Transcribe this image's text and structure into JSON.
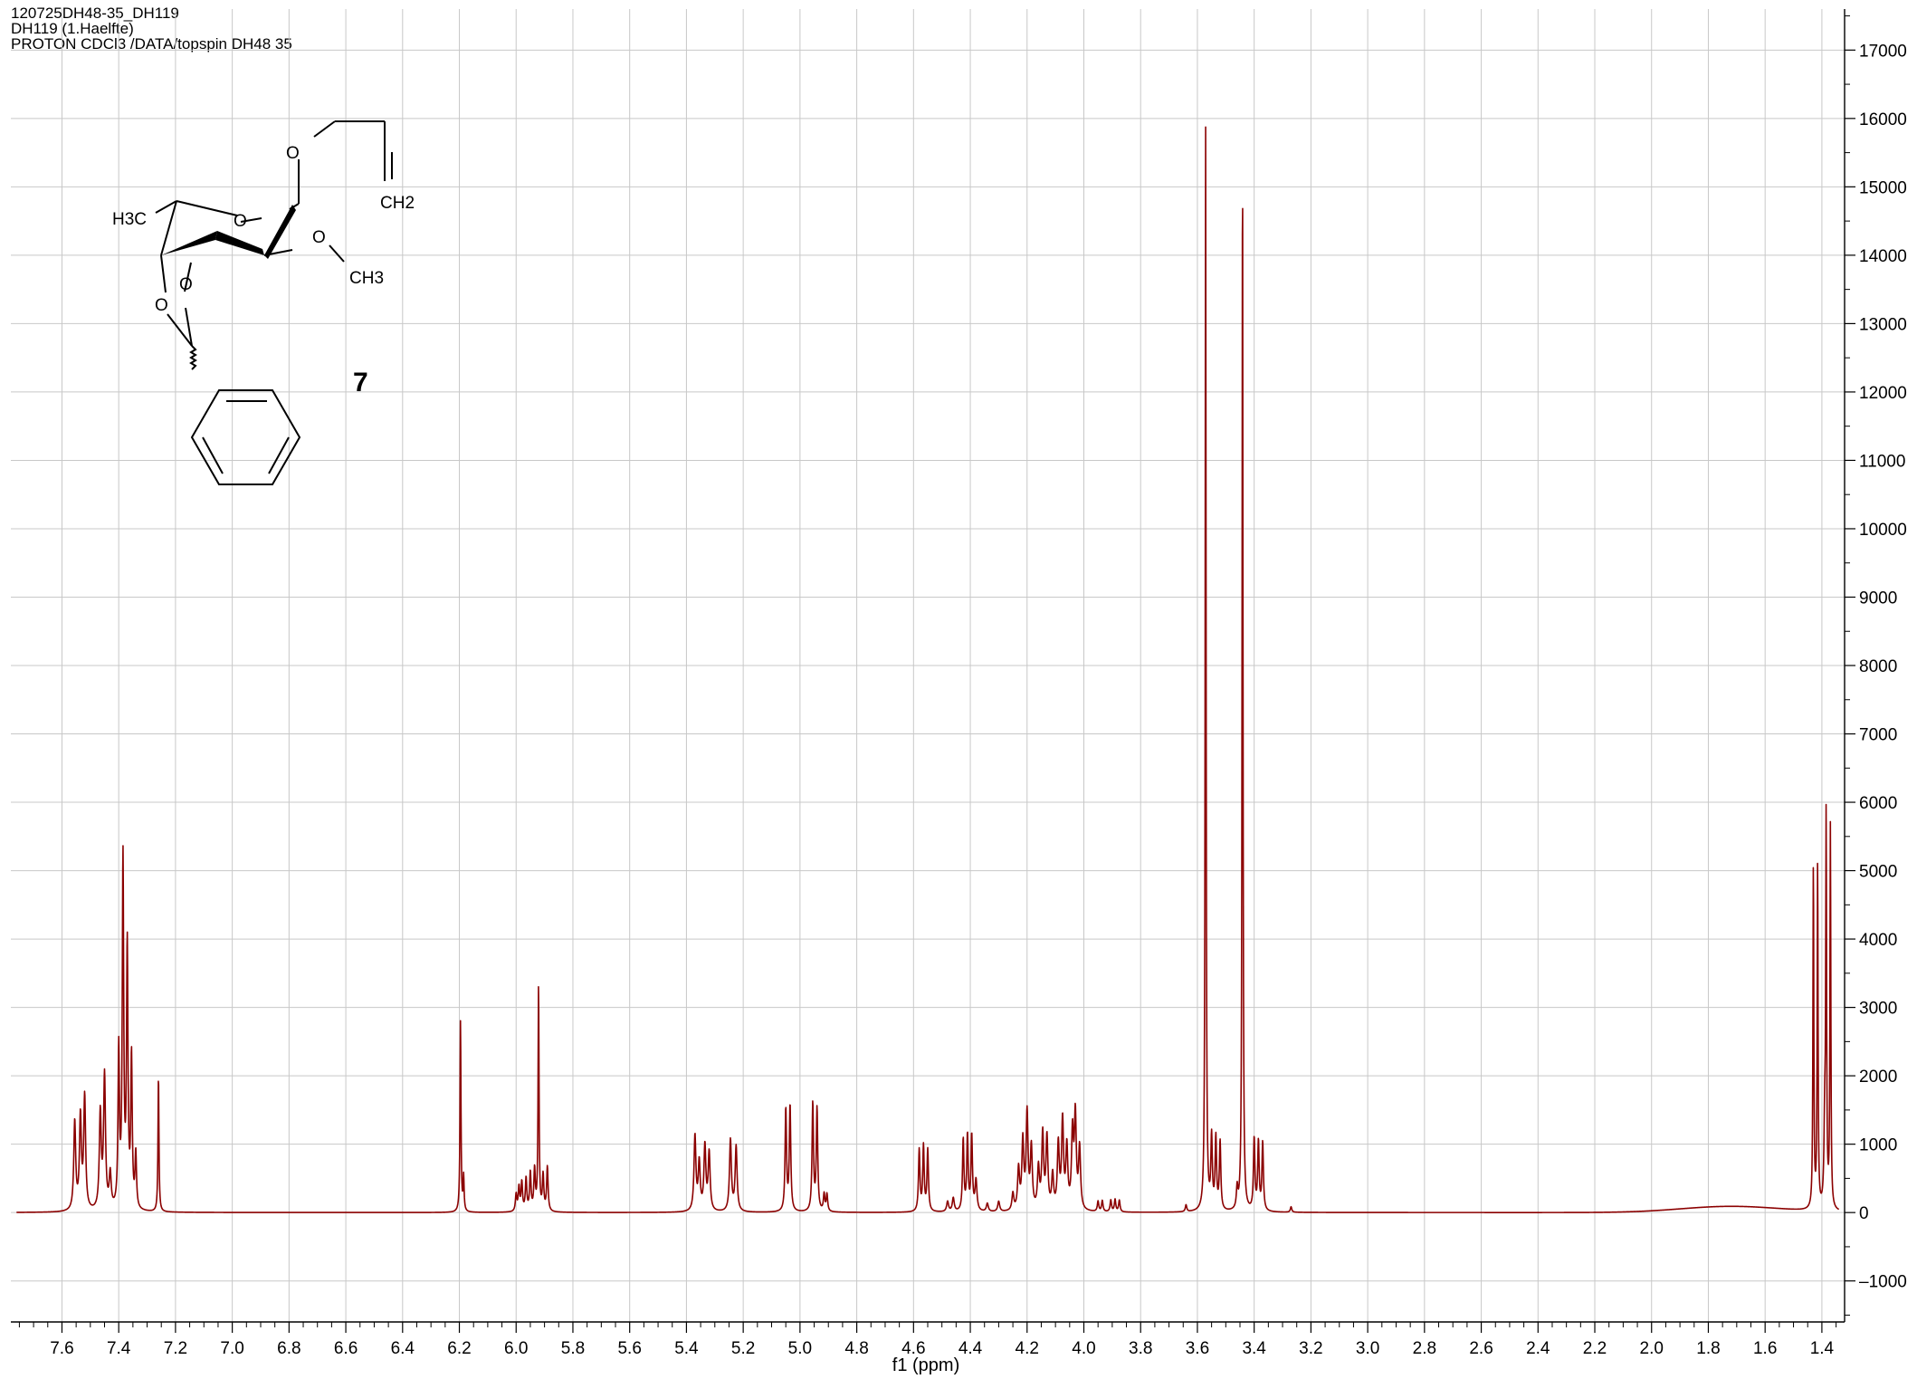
{
  "header": {
    "line1": "120725DH48-35_DH119",
    "line2": "DH119 (1.Haelfte)",
    "line3": "PROTON CDCl3 /DATA/topspin DH48 35"
  },
  "structure": {
    "compound_number": "7",
    "labels": [
      "H3C",
      "O",
      "O",
      "CH2",
      "O",
      "CH3",
      "O",
      "O"
    ]
  },
  "colors": {
    "spectrum": "#8b0000",
    "grid": "#c8c8c8",
    "axis": "#000000"
  },
  "chart_data": {
    "type": "line",
    "title": "",
    "xlabel": "f1 (ppm)",
    "ylabel": "",
    "xlim": [
      7.78,
      1.32
    ],
    "ylim": [
      -1600,
      17600
    ],
    "x_reversed": true,
    "grid": true,
    "y_axis_side": "right",
    "x_ticks": [
      "7.6",
      "7.4",
      "7.2",
      "7.0",
      "6.8",
      "6.6",
      "6.4",
      "6.2",
      "6.0",
      "5.8",
      "5.6",
      "5.4",
      "5.2",
      "5.0",
      "4.8",
      "4.6",
      "4.4",
      "4.2",
      "4.0",
      "3.8",
      "3.6",
      "3.4",
      "3.2",
      "3.0",
      "2.8",
      "2.6",
      "2.4",
      "2.2",
      "2.0",
      "1.8",
      "1.6",
      "1.4"
    ],
    "y_ticks": [
      "-1000",
      "0",
      "1000",
      "2000",
      "3000",
      "4000",
      "5000",
      "6000",
      "7000",
      "8000",
      "9000",
      "10000",
      "11000",
      "12000",
      "13000",
      "14000",
      "15000",
      "16000",
      "17000"
    ],
    "peaks": [
      {
        "ppm": 7.555,
        "height": 1300,
        "width": 0.004
      },
      {
        "ppm": 7.535,
        "height": 1350,
        "width": 0.004
      },
      {
        "ppm": 7.52,
        "height": 1650,
        "width": 0.004
      },
      {
        "ppm": 7.465,
        "height": 1400,
        "width": 0.004
      },
      {
        "ppm": 7.45,
        "height": 1950,
        "width": 0.004
      },
      {
        "ppm": 7.43,
        "height": 500,
        "width": 0.004
      },
      {
        "ppm": 7.4,
        "height": 2300,
        "width": 0.003
      },
      {
        "ppm": 7.385,
        "height": 5100,
        "width": 0.003
      },
      {
        "ppm": 7.37,
        "height": 3800,
        "width": 0.003
      },
      {
        "ppm": 7.355,
        "height": 2200,
        "width": 0.003
      },
      {
        "ppm": 7.34,
        "height": 800,
        "width": 0.003
      },
      {
        "ppm": 7.26,
        "height": 2000,
        "width": 0.002
      },
      {
        "ppm": 6.196,
        "height": 2800,
        "width": 0.002
      },
      {
        "ppm": 6.185,
        "height": 500,
        "width": 0.002
      },
      {
        "ppm": 6.0,
        "height": 250,
        "width": 0.003
      },
      {
        "ppm": 5.99,
        "height": 350,
        "width": 0.003
      },
      {
        "ppm": 5.98,
        "height": 420,
        "width": 0.003
      },
      {
        "ppm": 5.965,
        "height": 480,
        "width": 0.003
      },
      {
        "ppm": 5.95,
        "height": 560,
        "width": 0.003
      },
      {
        "ppm": 5.935,
        "height": 600,
        "width": 0.003
      },
      {
        "ppm": 5.921,
        "height": 3300,
        "width": 0.002
      },
      {
        "ppm": 5.905,
        "height": 520,
        "width": 0.003
      },
      {
        "ppm": 5.89,
        "height": 650,
        "width": 0.003
      },
      {
        "ppm": 5.37,
        "height": 1100,
        "width": 0.004
      },
      {
        "ppm": 5.355,
        "height": 700,
        "width": 0.004
      },
      {
        "ppm": 5.335,
        "height": 950,
        "width": 0.004
      },
      {
        "ppm": 5.32,
        "height": 850,
        "width": 0.004
      },
      {
        "ppm": 5.245,
        "height": 1050,
        "width": 0.004
      },
      {
        "ppm": 5.225,
        "height": 950,
        "width": 0.004
      },
      {
        "ppm": 5.05,
        "height": 1500,
        "width": 0.003
      },
      {
        "ppm": 5.035,
        "height": 1550,
        "width": 0.003
      },
      {
        "ppm": 4.955,
        "height": 1580,
        "width": 0.003
      },
      {
        "ppm": 4.94,
        "height": 1500,
        "width": 0.003
      },
      {
        "ppm": 4.915,
        "height": 250,
        "width": 0.003
      },
      {
        "ppm": 4.905,
        "height": 250,
        "width": 0.003
      },
      {
        "ppm": 4.58,
        "height": 900,
        "width": 0.003
      },
      {
        "ppm": 4.565,
        "height": 950,
        "width": 0.003
      },
      {
        "ppm": 4.55,
        "height": 900,
        "width": 0.003
      },
      {
        "ppm": 4.48,
        "height": 150,
        "width": 0.004
      },
      {
        "ppm": 4.46,
        "height": 200,
        "width": 0.004
      },
      {
        "ppm": 4.425,
        "height": 1050,
        "width": 0.003
      },
      {
        "ppm": 4.41,
        "height": 1100,
        "width": 0.003
      },
      {
        "ppm": 4.395,
        "height": 1100,
        "width": 0.003
      },
      {
        "ppm": 4.38,
        "height": 450,
        "width": 0.004
      },
      {
        "ppm": 4.34,
        "height": 120,
        "width": 0.004
      },
      {
        "ppm": 4.3,
        "height": 150,
        "width": 0.004
      },
      {
        "ppm": 4.25,
        "height": 250,
        "width": 0.004
      },
      {
        "ppm": 4.23,
        "height": 600,
        "width": 0.004
      },
      {
        "ppm": 4.215,
        "height": 1000,
        "width": 0.004
      },
      {
        "ppm": 4.2,
        "height": 1400,
        "width": 0.004
      },
      {
        "ppm": 4.185,
        "height": 900,
        "width": 0.004
      },
      {
        "ppm": 4.16,
        "height": 600,
        "width": 0.004
      },
      {
        "ppm": 4.145,
        "height": 1100,
        "width": 0.004
      },
      {
        "ppm": 4.13,
        "height": 1050,
        "width": 0.004
      },
      {
        "ppm": 4.11,
        "height": 500,
        "width": 0.004
      },
      {
        "ppm": 4.09,
        "height": 950,
        "width": 0.004
      },
      {
        "ppm": 4.075,
        "height": 1300,
        "width": 0.004
      },
      {
        "ppm": 4.06,
        "height": 900,
        "width": 0.004
      },
      {
        "ppm": 4.04,
        "height": 1100,
        "width": 0.004
      },
      {
        "ppm": 4.03,
        "height": 1350,
        "width": 0.004
      },
      {
        "ppm": 4.015,
        "height": 900,
        "width": 0.004
      },
      {
        "ppm": 3.95,
        "height": 150,
        "width": 0.003
      },
      {
        "ppm": 3.935,
        "height": 160,
        "width": 0.003
      },
      {
        "ppm": 3.905,
        "height": 170,
        "width": 0.003
      },
      {
        "ppm": 3.89,
        "height": 180,
        "width": 0.003
      },
      {
        "ppm": 3.875,
        "height": 170,
        "width": 0.003
      },
      {
        "ppm": 3.64,
        "height": 100,
        "width": 0.003
      },
      {
        "ppm": 3.571,
        "height": 15850,
        "width": 0.0018
      },
      {
        "ppm": 3.55,
        "height": 1050,
        "width": 0.003
      },
      {
        "ppm": 3.535,
        "height": 1050,
        "width": 0.003
      },
      {
        "ppm": 3.52,
        "height": 1000,
        "width": 0.003
      },
      {
        "ppm": 3.46,
        "height": 300,
        "width": 0.003
      },
      {
        "ppm": 3.441,
        "height": 15600,
        "width": 0.0018
      },
      {
        "ppm": 3.4,
        "height": 1050,
        "width": 0.003
      },
      {
        "ppm": 3.385,
        "height": 1000,
        "width": 0.003
      },
      {
        "ppm": 3.37,
        "height": 1000,
        "width": 0.003
      },
      {
        "ppm": 3.27,
        "height": 80,
        "width": 0.003
      },
      {
        "ppm": 1.43,
        "height": 5050,
        "width": 0.0018
      },
      {
        "ppm": 1.415,
        "height": 5050,
        "width": 0.0018
      },
      {
        "ppm": 1.39,
        "height": 1200,
        "width": 0.003
      },
      {
        "ppm": 1.385,
        "height": 5550,
        "width": 0.0018
      },
      {
        "ppm": 1.37,
        "height": 5600,
        "width": 0.0018
      }
    ],
    "baseline_hump": {
      "center_ppm": 1.72,
      "height": 90,
      "width": 0.25
    }
  }
}
